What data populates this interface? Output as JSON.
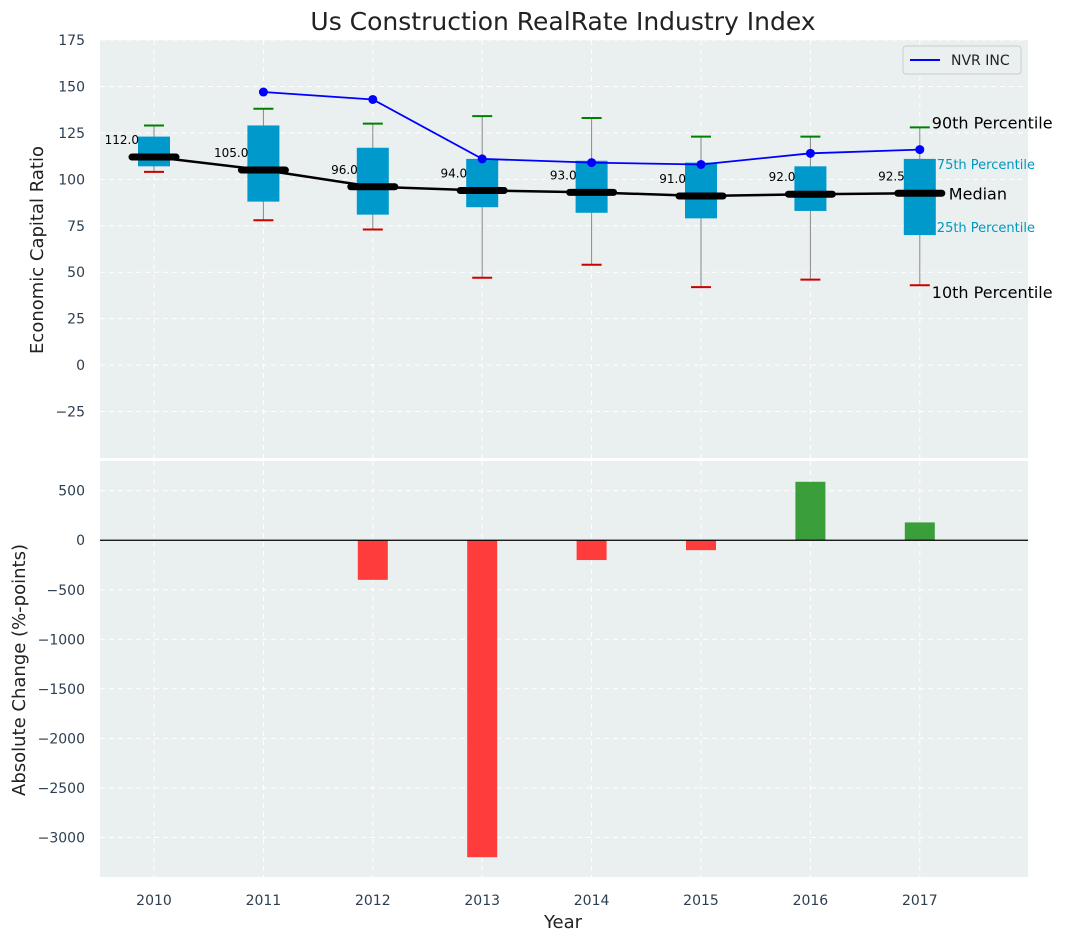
{
  "chart_data": [
    {
      "type": "box",
      "title": "Us Construction RealRate Industry Index",
      "ylabel": "Economic Capital Ratio",
      "ylim": [
        -50,
        175
      ],
      "yticks": [
        -25,
        0,
        25,
        50,
        75,
        100,
        125,
        150,
        175
      ],
      "ytick_labels": [
        "−25",
        "0",
        "25",
        "50",
        "75",
        "100",
        "125",
        "150",
        "175"
      ],
      "grid": true,
      "categories": [
        "2010",
        "2011",
        "2012",
        "2013",
        "2014",
        "2015",
        "2016",
        "2017"
      ],
      "boxes": {
        "p10": [
          104,
          78,
          73,
          47,
          54,
          42,
          46,
          43
        ],
        "p25": [
          107,
          88,
          81,
          85,
          82,
          79,
          83,
          70
        ],
        "median": [
          112.0,
          105.0,
          96.0,
          94.0,
          93.0,
          91.0,
          92.0,
          92.5
        ],
        "p75": [
          123,
          129,
          117,
          111,
          110,
          109,
          107,
          111
        ],
        "p90": [
          129,
          138,
          130,
          134,
          133,
          123,
          123,
          128
        ]
      },
      "median_labels": [
        "112.0",
        "105.0",
        "96.0",
        "94.0",
        "93.0",
        "91.0",
        "92.0",
        "92.5"
      ],
      "series": [
        {
          "name": "NVR INC",
          "x": [
            "2011",
            "2012",
            "2013",
            "2014",
            "2015",
            "2016",
            "2017"
          ],
          "values": [
            147,
            143,
            111,
            109,
            108,
            114,
            116
          ]
        }
      ],
      "legend": {
        "position": "top-right",
        "entries": [
          "NVR INC"
        ]
      },
      "annotations": {
        "p90": "90th Percentile",
        "p75": "75th Percentile",
        "median": "Median",
        "p25": "25th Percentile",
        "p10": "10th Percentile"
      },
      "colors": {
        "background": "#eaeff0",
        "box": "#0099cc",
        "median_line": "#000000",
        "whisker": "#888888",
        "cap_high": "#008000",
        "cap_low": "#cc0000",
        "company_line": "#0000ff",
        "percentile_label": "#0099bb"
      }
    },
    {
      "type": "bar",
      "xlabel": "Year",
      "ylabel": "Absolute Change (%-points)",
      "ylim": [
        -3400,
        800
      ],
      "yticks": [
        -3000,
        -2500,
        -2000,
        -1500,
        -1000,
        -500,
        0,
        500
      ],
      "ytick_labels": [
        "−3000",
        "−2500",
        "−2000",
        "−1500",
        "−1000",
        "−500",
        "0",
        "500"
      ],
      "grid": true,
      "categories": [
        "2012",
        "2013",
        "2014",
        "2015",
        "2016",
        "2017"
      ],
      "values": [
        -400,
        -3200,
        -200,
        -100,
        590,
        180
      ],
      "colors": {
        "negative": "#ff3c3c",
        "positive": "#3a9e3a",
        "zero_line": "#000000"
      }
    }
  ]
}
